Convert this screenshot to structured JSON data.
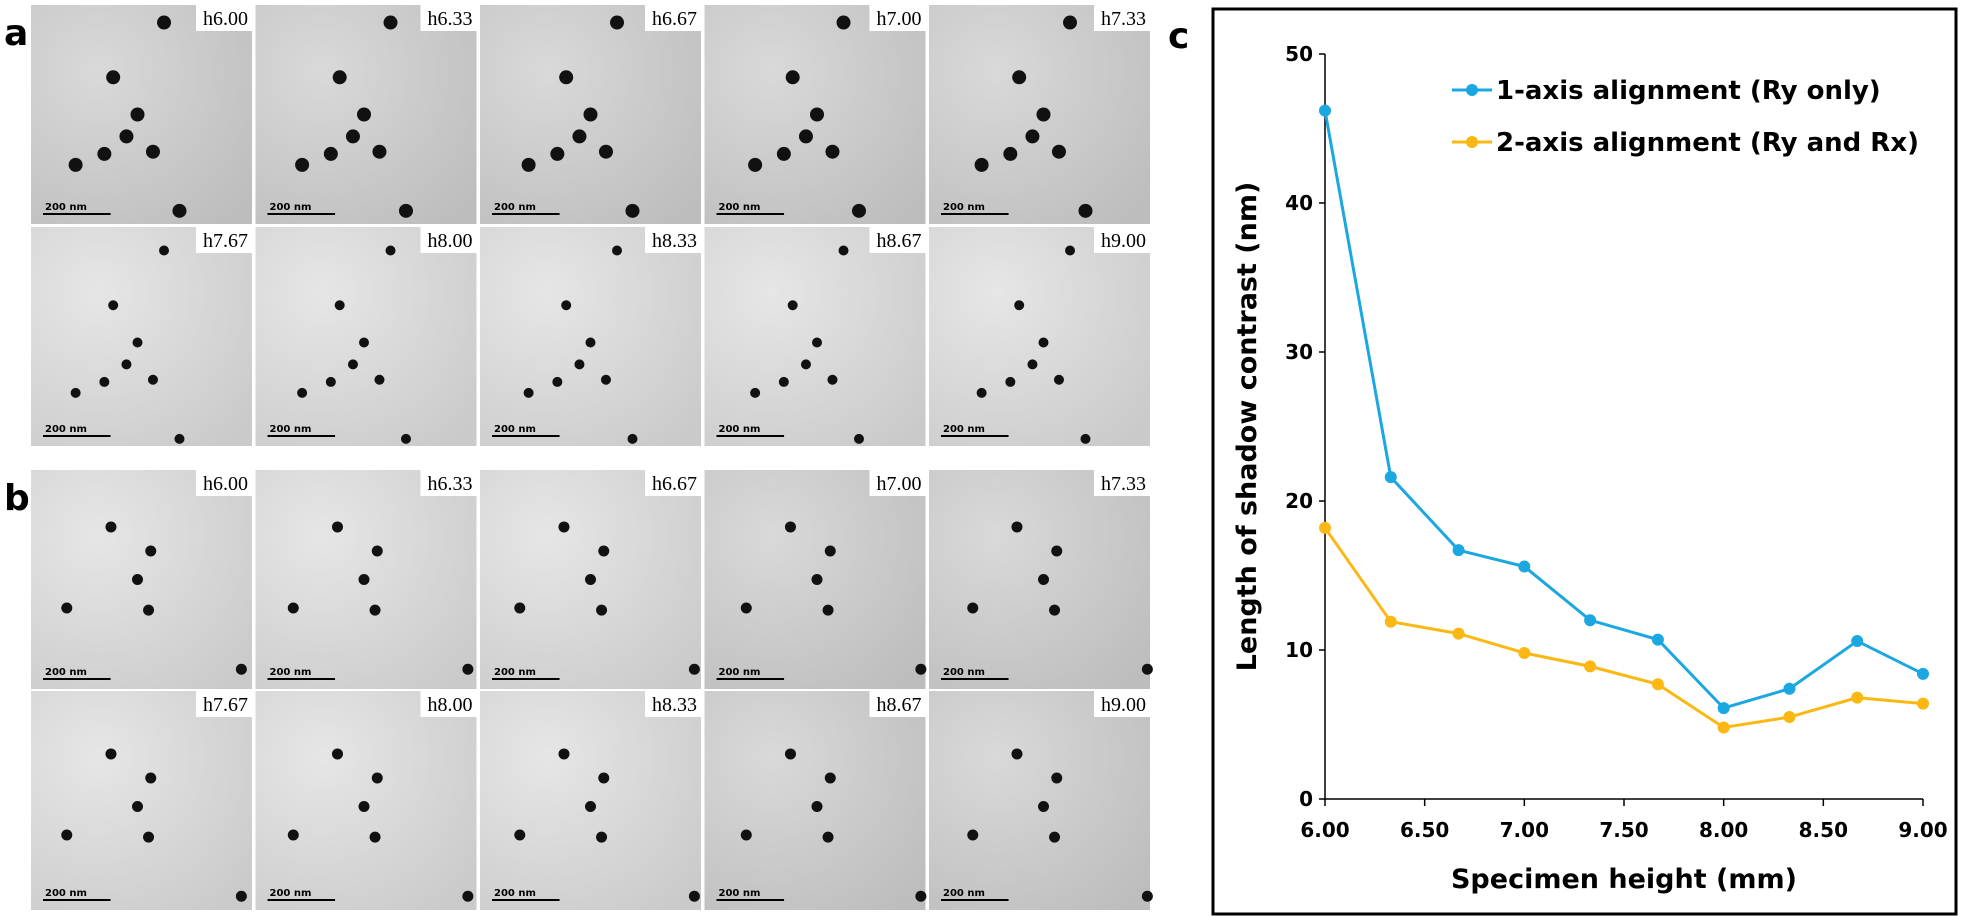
{
  "panels": [
    {
      "label": "a",
      "images": [
        {
          "label": "h6.00",
          "scale_bar": "200 nm"
        },
        {
          "label": "h6.33",
          "scale_bar": "200 nm"
        },
        {
          "label": "h6.67",
          "scale_bar": "200 nm"
        },
        {
          "label": "h7.00",
          "scale_bar": "200 nm"
        },
        {
          "label": "h7.33",
          "scale_bar": "200 nm"
        },
        {
          "label": "h7.67",
          "scale_bar": "200 nm"
        },
        {
          "label": "h8.00",
          "scale_bar": "200 nm"
        },
        {
          "label": "h8.33",
          "scale_bar": "200 nm"
        },
        {
          "label": "h8.67",
          "scale_bar": "200 nm"
        },
        {
          "label": "h9.00",
          "scale_bar": "200 nm"
        }
      ]
    },
    {
      "label": "b",
      "images": [
        {
          "label": "h6.00",
          "scale_bar": "200 nm"
        },
        {
          "label": "h6.33",
          "scale_bar": "200 nm"
        },
        {
          "label": "h6.67",
          "scale_bar": "200 nm"
        },
        {
          "label": "h7.00",
          "scale_bar": "200 nm"
        },
        {
          "label": "h7.33",
          "scale_bar": "200 nm"
        },
        {
          "label": "h7.67",
          "scale_bar": "200 nm"
        },
        {
          "label": "h8.00",
          "scale_bar": "200 nm"
        },
        {
          "label": "h8.33",
          "scale_bar": "200 nm"
        },
        {
          "label": "h8.67",
          "scale_bar": "200 nm"
        },
        {
          "label": "h9.00",
          "scale_bar": "200 nm"
        }
      ]
    }
  ],
  "chart_data": {
    "type": "line",
    "label": "c",
    "x_label": "Specimen height (mm)",
    "y_label": "Length of shadow contrast (nm)",
    "x": [
      6.0,
      6.33,
      6.67,
      7.0,
      7.33,
      7.67,
      8.0,
      8.33,
      8.67,
      9.0
    ],
    "series": [
      {
        "name": "1-axis alignment (Ry only)",
        "color": "#1ba7e0",
        "values": [
          46.2,
          21.6,
          16.7,
          15.6,
          12.0,
          10.7,
          6.1,
          7.4,
          10.6,
          8.4
        ]
      },
      {
        "name": "2-axis alignment (Ry and Rx)",
        "color": "#fbb712",
        "values": [
          18.2,
          11.9,
          11.1,
          9.8,
          8.9,
          7.7,
          4.8,
          5.5,
          6.8,
          6.4
        ]
      }
    ],
    "xlim": [
      6,
      9
    ],
    "xticks": [
      {
        "value": 6,
        "label": "6.00"
      },
      {
        "value": 6.5,
        "label": "6.50"
      },
      {
        "value": 7,
        "label": "7.00"
      },
      {
        "value": 7.5,
        "label": "7.50"
      },
      {
        "value": 8,
        "label": "8.00"
      },
      {
        "value": 8.5,
        "label": "8.50"
      },
      {
        "value": 9,
        "label": "9.00"
      }
    ],
    "ylim": [
      0,
      50
    ],
    "yticks": [
      0,
      10,
      20,
      30,
      40,
      50
    ],
    "grid": false,
    "legend": "top-right"
  }
}
